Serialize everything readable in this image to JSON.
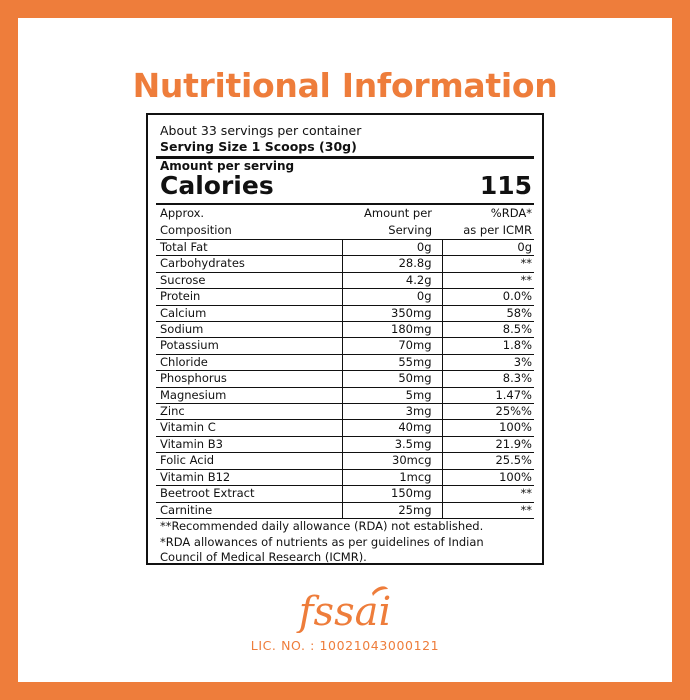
{
  "title": "Nutritional Information",
  "brand_color": "#ee7d3b",
  "panel": {
    "servings": "About 33 servings per container",
    "serving_size": "Serving Size  1 Scoops (30g)",
    "amount_per_serving": "Amount per serving",
    "calories_label": "Calories",
    "calories_value": "115",
    "headers": {
      "col1_line1": "Approx.",
      "col1_line2": "Composition",
      "col2_line1": "Amount per",
      "col2_line2": "Serving",
      "col3_line1": "%RDA*",
      "col3_line2": "as per ICMR"
    },
    "rows": [
      {
        "name": "Total Fat",
        "amount": "0g",
        "rda": "0g"
      },
      {
        "name": "Carbohydrates",
        "amount": "28.8g",
        "rda": "**"
      },
      {
        "name": "Sucrose",
        "amount": "4.2g",
        "rda": "**"
      },
      {
        "name": "Protein",
        "amount": "0g",
        "rda": "0.0%"
      },
      {
        "name": "Calcium",
        "amount": "350mg",
        "rda": "58%"
      },
      {
        "name": "Sodium",
        "amount": "180mg",
        "rda": "8.5%"
      },
      {
        "name": "Potassium",
        "amount": "70mg",
        "rda": "1.8%"
      },
      {
        "name": "Chloride",
        "amount": "55mg",
        "rda": "3%"
      },
      {
        "name": "Phosphorus",
        "amount": "50mg",
        "rda": "8.3%"
      },
      {
        "name": "Magnesium",
        "amount": "5mg",
        "rda": "1.47%"
      },
      {
        "name": "Zinc",
        "amount": "3mg",
        "rda": "25%%"
      },
      {
        "name": "Vitamin C",
        "amount": "40mg",
        "rda": "100%"
      },
      {
        "name": "Vitamin B3",
        "amount": "3.5mg",
        "rda": "21.9%"
      },
      {
        "name": "Folic Acid",
        "amount": "30mcg",
        "rda": "25.5%"
      },
      {
        "name": "Vitamin B12",
        "amount": "1mcg",
        "rda": "100%"
      },
      {
        "name": "Beetroot Extract",
        "amount": "150mg",
        "rda": "**"
      },
      {
        "name": "Carnitine",
        "amount": "25mg",
        "rda": "**"
      }
    ],
    "footnote1": "**Recommended daily allowance (RDA) not established.",
    "footnote2_line1": "*RDA allowances of nutrients as per guidelines of Indian",
    "footnote2_line2": "Council of Medical Research (ICMR)."
  },
  "logo_text": "fssai",
  "license": "LIC. NO. : 10021043000121"
}
